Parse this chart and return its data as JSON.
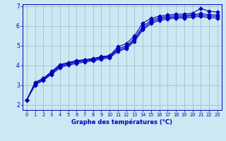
{
  "xlabel": "Graphe des températures (°C)",
  "background_color": "#cce8f2",
  "line_color": "#0000bb",
  "grid_color": "#99bbcc",
  "xlim_min": -0.5,
  "xlim_max": 23.5,
  "ylim_min": 1.75,
  "ylim_max": 7.1,
  "xticks": [
    0,
    1,
    2,
    3,
    4,
    5,
    6,
    7,
    8,
    9,
    10,
    11,
    12,
    13,
    14,
    15,
    16,
    17,
    18,
    19,
    20,
    21,
    22,
    23
  ],
  "yticks": [
    2,
    3,
    4,
    5,
    6,
    7
  ],
  "series": [
    [
      2.25,
      3.15,
      3.35,
      3.7,
      4.05,
      4.15,
      4.25,
      4.3,
      4.35,
      4.45,
      4.5,
      4.95,
      5.1,
      5.5,
      6.15,
      6.38,
      6.5,
      6.55,
      6.6,
      6.6,
      6.65,
      6.88,
      6.75,
      6.7
    ],
    [
      2.25,
      3.1,
      3.35,
      3.65,
      4.0,
      4.12,
      4.2,
      4.28,
      4.32,
      4.42,
      4.48,
      4.85,
      4.98,
      5.38,
      5.98,
      6.28,
      6.42,
      6.48,
      6.52,
      6.52,
      6.58,
      6.62,
      6.58,
      6.55
    ],
    [
      2.25,
      3.05,
      3.3,
      3.6,
      3.95,
      4.08,
      4.16,
      4.23,
      4.28,
      4.38,
      4.44,
      4.78,
      4.91,
      5.3,
      5.88,
      6.2,
      6.35,
      6.42,
      6.46,
      6.46,
      6.52,
      6.55,
      6.5,
      6.48
    ],
    [
      2.25,
      3.0,
      3.25,
      3.55,
      3.88,
      4.02,
      4.1,
      4.18,
      4.23,
      4.32,
      4.38,
      4.72,
      4.85,
      5.22,
      5.8,
      6.12,
      6.28,
      6.35,
      6.4,
      6.4,
      6.45,
      6.48,
      6.42,
      6.4
    ]
  ]
}
